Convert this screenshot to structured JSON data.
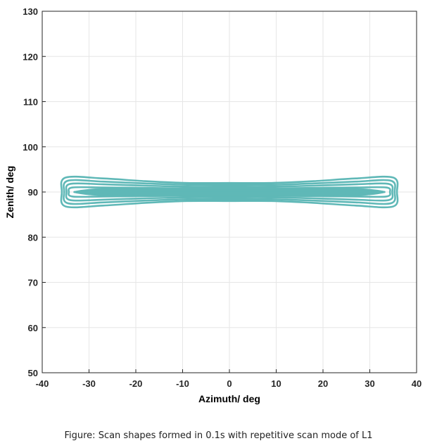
{
  "chart_data": {
    "type": "line",
    "title": "",
    "xlabel": "Azimuth/ deg",
    "ylabel": "Zenith/ deg",
    "xlim": [
      -40,
      40
    ],
    "ylim": [
      50,
      130
    ],
    "xticks": [
      -40,
      -30,
      -20,
      -10,
      0,
      10,
      20,
      30,
      40
    ],
    "yticks": [
      50,
      60,
      70,
      80,
      90,
      100,
      110,
      120,
      130
    ],
    "grid": true,
    "legend": "none",
    "series_color": "#5fb8b7",
    "series": [
      {
        "description_note": "",
        "loops": [
          {
            "x": [
              -35,
              -27,
              -18,
              -9,
              0,
              9,
              18,
              27,
              35
            ],
            "y_top": [
              93.2,
              93.0,
              92.4,
              92.0,
              92.0,
              92.0,
              92.4,
              93.0,
              93.2
            ],
            "y_bottom": [
              86.8,
              87.0,
              87.6,
              88.0,
              88.0,
              88.0,
              87.6,
              87.0,
              86.8
            ]
          },
          {
            "x": [
              -34.5,
              -27,
              -18,
              -9,
              0,
              9,
              18,
              27,
              34.5
            ],
            "y_top": [
              92.5,
              92.3,
              91.9,
              91.6,
              91.6,
              91.6,
              91.9,
              92.3,
              92.5
            ],
            "y_bottom": [
              87.5,
              87.7,
              88.1,
              88.4,
              88.4,
              88.4,
              88.1,
              87.7,
              87.5
            ]
          },
          {
            "x": [
              -34,
              -27,
              -18,
              -9,
              0,
              9,
              18,
              27,
              34
            ],
            "y_top": [
              91.8,
              91.7,
              91.4,
              91.2,
              91.2,
              91.2,
              91.4,
              91.7,
              91.8
            ],
            "y_bottom": [
              88.2,
              88.3,
              88.6,
              88.8,
              88.8,
              88.8,
              88.6,
              88.3,
              88.2
            ]
          },
          {
            "x": [
              -33.5,
              -27,
              -18,
              -9,
              0,
              9,
              18,
              27,
              33.5
            ],
            "y_top": [
              91.0,
              91.0,
              90.9,
              90.8,
              90.8,
              90.8,
              90.9,
              91.0,
              91.0
            ],
            "y_bottom": [
              89.0,
              89.0,
              89.1,
              89.2,
              89.2,
              89.2,
              89.1,
              89.0,
              89.0
            ]
          }
        ]
      }
    ]
  },
  "caption": "Figure: Scan shapes formed in 0.1s with repetitive scan mode of L1"
}
